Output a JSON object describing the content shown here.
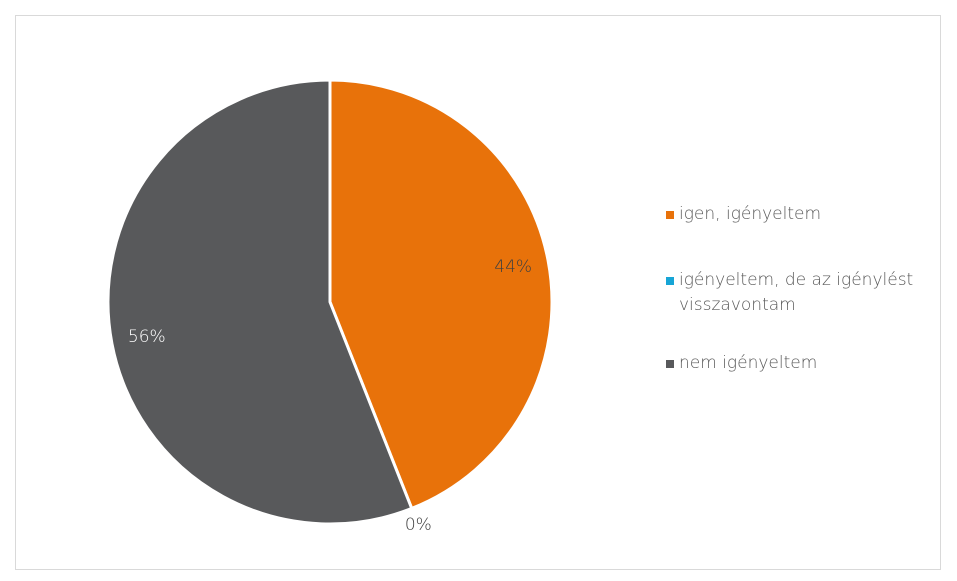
{
  "chart_data": {
    "type": "pie",
    "categories": [
      "igen, igényeltem",
      "igényeltem, de az igénylést visszavontam",
      "nem igényeltem"
    ],
    "values": [
      44,
      0,
      56
    ],
    "labels": [
      "44%",
      "0%",
      "56%"
    ],
    "colors": [
      "#E8720A",
      "#17A5D6",
      "#58595B"
    ],
    "start_angle_deg": 0,
    "direction": "clockwise",
    "legend_position": "right"
  },
  "legend": {
    "items": [
      {
        "label": "igen, igényeltem",
        "color": "#E8720A"
      },
      {
        "label": "igényeltem, de az igénylést visszavontam",
        "color": "#17A5D6"
      },
      {
        "label": "nem igényeltem",
        "color": "#58595B"
      }
    ]
  }
}
